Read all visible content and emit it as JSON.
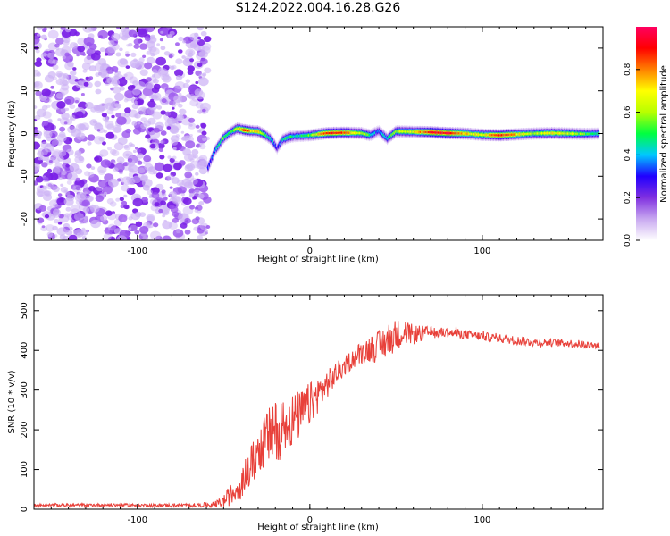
{
  "page_title": "S124.2022.004.16.28.G26",
  "chart_data": [
    {
      "type": "heatmap",
      "title": "",
      "xlabel": "Height of straight line (km)",
      "ylabel": "Frequency (Hz)",
      "xlim": [
        -160,
        170
      ],
      "ylim": [
        -25,
        25
      ],
      "x_ticks": [
        -100,
        0,
        100
      ],
      "y_ticks": [
        -20,
        -10,
        0,
        10,
        20
      ],
      "colorbar": {
        "label": "Normalized spectral amplitude",
        "range": [
          0,
          1
        ],
        "ticks": [
          0.0,
          0.2,
          0.4,
          0.6,
          0.8
        ],
        "colors": [
          "#ffffff",
          "#c8a8f0",
          "#8030e0",
          "#2000ff",
          "#00c8ff",
          "#00ff40",
          "#b8ff00",
          "#ffff00",
          "#ff8000",
          "#ff0000",
          "#ff0060"
        ]
      },
      "noise_region_x": [
        -160,
        -59
      ],
      "ridge": {
        "x": [
          -59,
          -55,
          -50,
          -46,
          -42,
          -38,
          -34,
          -30,
          -26,
          -22,
          -19,
          -16,
          -12,
          -8,
          -4,
          0,
          10,
          20,
          30,
          35,
          40,
          45,
          50,
          60,
          70,
          80,
          90,
          100,
          110,
          120,
          130,
          140,
          150,
          160,
          168
        ],
        "y": [
          -8,
          -4,
          -1,
          0.3,
          1.2,
          0.8,
          0.6,
          0.5,
          -0.3,
          -1.5,
          -3.5,
          -1.5,
          -0.8,
          -0.6,
          -0.5,
          -0.4,
          0.1,
          0.2,
          0.1,
          -0.4,
          0.6,
          -1.2,
          0.5,
          0.4,
          0.3,
          0.1,
          0.0,
          -0.3,
          -0.4,
          -0.2,
          0.0,
          0.1,
          0.0,
          -0.1,
          0.0
        ],
        "amplitude": [
          0.3,
          0.4,
          0.55,
          0.5,
          0.65,
          0.9,
          0.75,
          0.7,
          0.55,
          0.4,
          0.3,
          0.45,
          0.5,
          0.45,
          0.5,
          0.55,
          0.9,
          0.85,
          0.6,
          0.5,
          0.35,
          0.45,
          0.6,
          0.7,
          0.9,
          0.95,
          0.75,
          0.65,
          0.9,
          0.75,
          0.6,
          0.7,
          0.65,
          0.55,
          0.5
        ]
      }
    },
    {
      "type": "line",
      "title": "",
      "xlabel": "Height of straight line (km)",
      "ylabel": "SNR (10 * v/v)",
      "xlim": [
        -160,
        170
      ],
      "ylim": [
        0,
        540
      ],
      "x_ticks": [
        -100,
        0,
        100
      ],
      "y_ticks": [
        0,
        100,
        200,
        300,
        400,
        500
      ],
      "series": [
        {
          "color": "#e8413a",
          "x": [
            -160,
            -140,
            -120,
            -100,
            -80,
            -65,
            -55,
            -50,
            -45,
            -40,
            -35,
            -30,
            -25,
            -20,
            -15,
            -10,
            -5,
            0,
            5,
            10,
            15,
            20,
            25,
            30,
            35,
            40,
            45,
            50,
            55,
            60,
            70,
            80,
            90,
            100,
            110,
            120,
            130,
            140,
            150,
            160,
            168
          ],
          "y": [
            10,
            10,
            11,
            10,
            10,
            10,
            12,
            20,
            40,
            65,
            100,
            145,
            180,
            195,
            215,
            225,
            240,
            265,
            290,
            315,
            340,
            360,
            380,
            395,
            405,
            410,
            425,
            440,
            445,
            440,
            445,
            445,
            440,
            435,
            430,
            425,
            420,
            420,
            418,
            415,
            412
          ],
          "noise": [
            4,
            4,
            4,
            4,
            4,
            5,
            8,
            15,
            30,
            40,
            50,
            60,
            70,
            80,
            75,
            70,
            60,
            55,
            45,
            35,
            30,
            25,
            25,
            30,
            35,
            40,
            45,
            40,
            30,
            25,
            15,
            12,
            12,
            11,
            11,
            11,
            11,
            10,
            10,
            10,
            10
          ]
        }
      ]
    }
  ]
}
